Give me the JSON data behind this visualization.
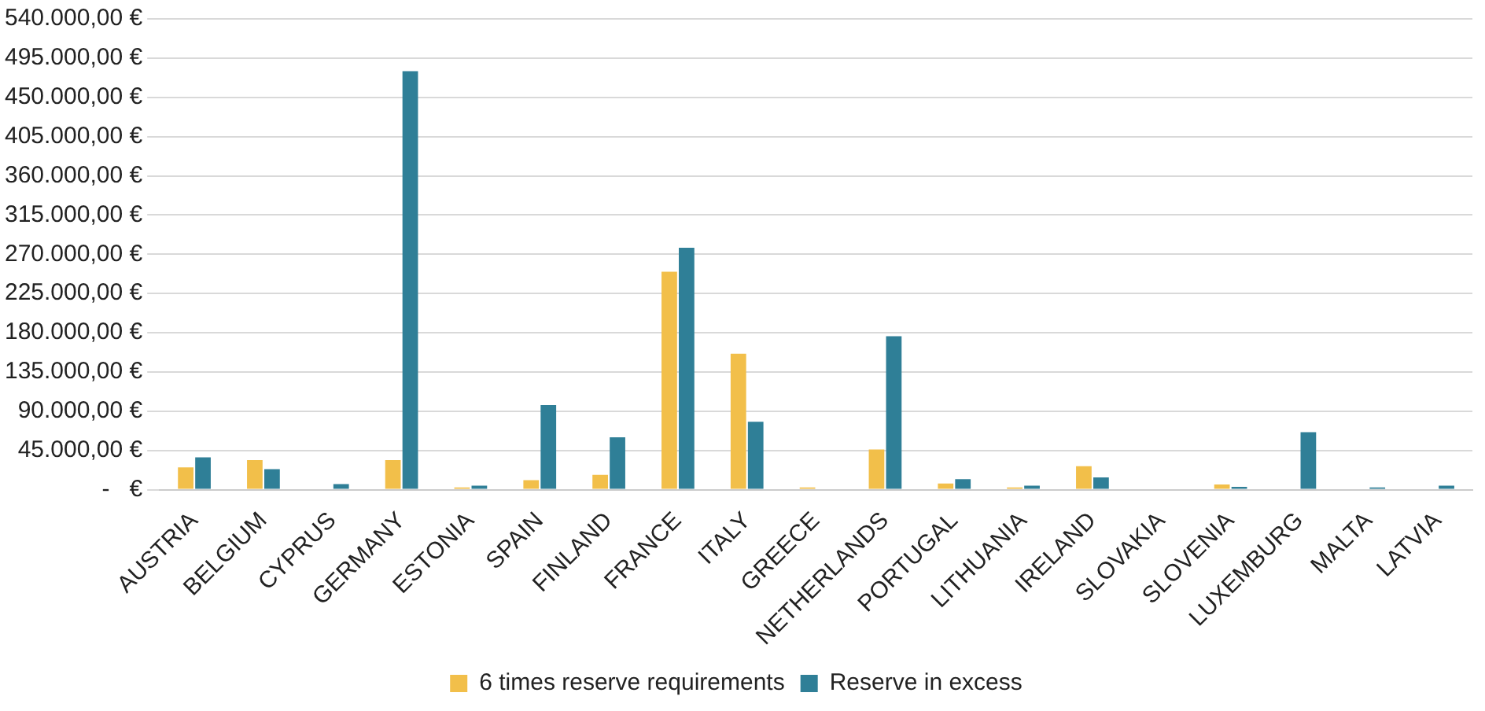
{
  "chart_data": {
    "type": "bar",
    "categories": [
      "AUSTRIA",
      "BELGIUM",
      "CYPRUS",
      "GERMANY",
      "ESTONIA",
      "SPAIN",
      "FINLAND",
      "FRANCE",
      "ITALY",
      "GREECE",
      "NETHERLANDS",
      "PORTUGAL",
      "LITHUANIA",
      "IRELAND",
      "SLOVAKIA",
      "SLOVENIA",
      "LUXEMBURG",
      "MALTA",
      "LATVIA"
    ],
    "series": [
      {
        "name": "6 times reserve requirements",
        "color": "#f2bf4a",
        "values": [
          25500,
          34000,
          0,
          34000,
          2600,
          11000,
          17000,
          250000,
          156000,
          2600,
          46000,
          7000,
          2600,
          27000,
          0,
          6000,
          0,
          0,
          0
        ]
      },
      {
        "name": "Reserve in excess",
        "color": "#2f7f97",
        "values": [
          37000,
          23500,
          6500,
          480000,
          4600,
          97000,
          60000,
          277500,
          78000,
          0,
          176000,
          12000,
          4600,
          14000,
          0,
          3300,
          66000,
          2600,
          4600
        ]
      }
    ],
    "ylim": [
      0,
      540000
    ],
    "yticks": [
      {
        "value": 0,
        "label": "-   €"
      },
      {
        "value": 45000,
        "label": "45.000,00 €"
      },
      {
        "value": 90000,
        "label": "90.000,00 €"
      },
      {
        "value": 135000,
        "label": "135.000,00 €"
      },
      {
        "value": 180000,
        "label": "180.000,00 €"
      },
      {
        "value": 225000,
        "label": "225.000,00 €"
      },
      {
        "value": 270000,
        "label": "270.000,00 €"
      },
      {
        "value": 315000,
        "label": "315.000,00 €"
      },
      {
        "value": 360000,
        "label": "360.000,00 €"
      },
      {
        "value": 405000,
        "label": "405.000,00 €"
      },
      {
        "value": 450000,
        "label": "450.000,00 €"
      },
      {
        "value": 495000,
        "label": "495.000,00 €"
      },
      {
        "value": 540000,
        "label": "540.000,00 €"
      }
    ],
    "grid": "y",
    "legend": "bottom"
  }
}
